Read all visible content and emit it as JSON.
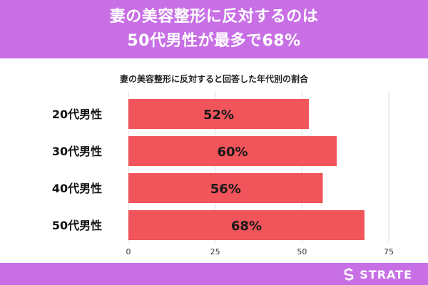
{
  "header": {
    "title_line1": "妻の美容整形に反対するのは",
    "title_line2": "50代男性が最多で68%"
  },
  "brand": {
    "name": "STRATE"
  },
  "colors": {
    "banner": "#c86fe6",
    "bar": "#f2545b",
    "grid": "#dddddd"
  },
  "chart_data": {
    "type": "bar",
    "orientation": "horizontal",
    "title": "妻の美容整形に反対すると回答した年代別の割合",
    "categories": [
      "20代男性",
      "30代男性",
      "40代男性",
      "50代男性"
    ],
    "values": [
      52,
      60,
      56,
      68
    ],
    "value_labels": [
      "52%",
      "60%",
      "56%",
      "68%"
    ],
    "xlim": [
      0,
      75
    ],
    "xticks": [
      0,
      25,
      50,
      75
    ],
    "grid": true,
    "legend": "none"
  }
}
